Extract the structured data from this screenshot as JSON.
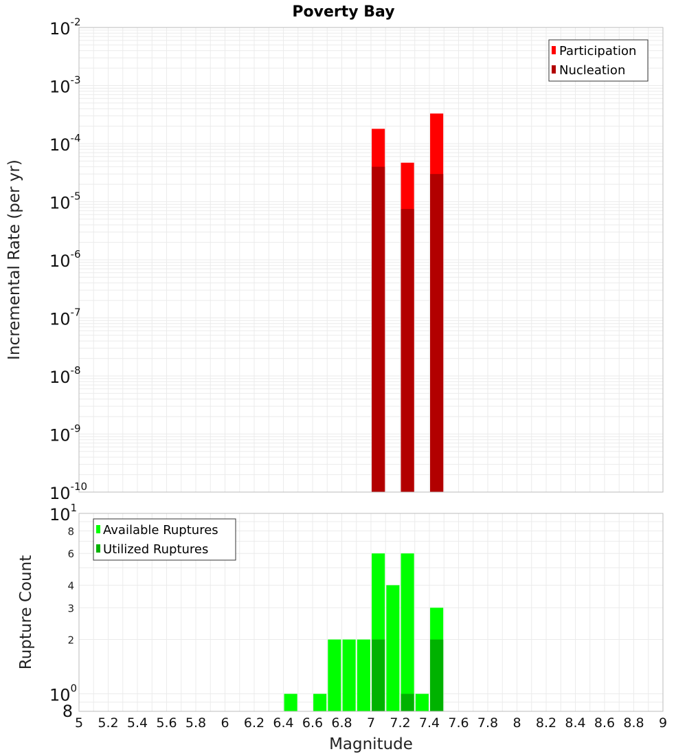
{
  "title": "Poverty Bay",
  "x_axis": {
    "label": "Magnitude",
    "min": 5,
    "max": 9,
    "ticks": [
      "5",
      "5.2",
      "5.4",
      "5.6",
      "5.8",
      "6",
      "6.2",
      "6.4",
      "6.6",
      "6.8",
      "7",
      "7.2",
      "7.4",
      "7.6",
      "7.8",
      "8",
      "8.2",
      "8.4",
      "8.6",
      "8.8",
      "9"
    ]
  },
  "top_panel": {
    "ylabel": "Incremental Rate (per yr)",
    "scale": "log",
    "ylim": [
      1e-10,
      0.01
    ],
    "y_tick_exponents": [
      "-2",
      "-3",
      "-4",
      "-5",
      "-6",
      "-7",
      "-8",
      "-9",
      "-10"
    ],
    "legend": [
      {
        "label": "Participation",
        "color": "#ff0000"
      },
      {
        "label": "Nucleation",
        "color": "#b20000"
      }
    ]
  },
  "bottom_panel": {
    "ylabel": "Rupture Count",
    "scale": "log",
    "ylim": [
      0.8,
      10
    ],
    "y_major_exponents": [
      "1",
      "0"
    ],
    "y_minor_labels": [
      "8",
      "6",
      "4",
      "3",
      "2",
      "8"
    ],
    "legend": [
      {
        "label": "Available Ruptures",
        "color": "#00ff00"
      },
      {
        "label": "Utilized Ruptures",
        "color": "#00b200"
      }
    ]
  },
  "chart_data": [
    {
      "type": "bar",
      "panel": "top",
      "title": "Poverty Bay",
      "xlabel": "Magnitude",
      "ylabel": "Incremental Rate (per yr)",
      "yscale": "log",
      "xlim": [
        5,
        9
      ],
      "ylim": [
        1e-10,
        0.01
      ],
      "bin_width": 0.1,
      "series": [
        {
          "name": "Participation",
          "color": "#ff0000",
          "x": [
            7.05,
            7.25,
            7.45
          ],
          "values": [
            0.00018,
            4.7e-05,
            0.00033
          ]
        },
        {
          "name": "Nucleation",
          "color": "#b20000",
          "x": [
            7.05,
            7.25,
            7.45
          ],
          "values": [
            4e-05,
            7.5e-06,
            3e-05
          ]
        }
      ]
    },
    {
      "type": "bar",
      "panel": "bottom",
      "xlabel": "Magnitude",
      "ylabel": "Rupture Count",
      "yscale": "log",
      "xlim": [
        5,
        9
      ],
      "ylim": [
        0.8,
        10
      ],
      "bin_width": 0.1,
      "series": [
        {
          "name": "Available Ruptures",
          "color": "#00ff00",
          "x": [
            6.45,
            6.65,
            6.75,
            6.85,
            6.95,
            7.05,
            7.15,
            7.25,
            7.35,
            7.45
          ],
          "values": [
            1,
            1,
            2,
            2,
            2,
            6,
            4,
            6,
            1,
            3
          ]
        },
        {
          "name": "Utilized Ruptures",
          "color": "#00b200",
          "x": [
            7.05,
            7.25,
            7.45
          ],
          "values": [
            2,
            1,
            2
          ]
        }
      ]
    }
  ]
}
